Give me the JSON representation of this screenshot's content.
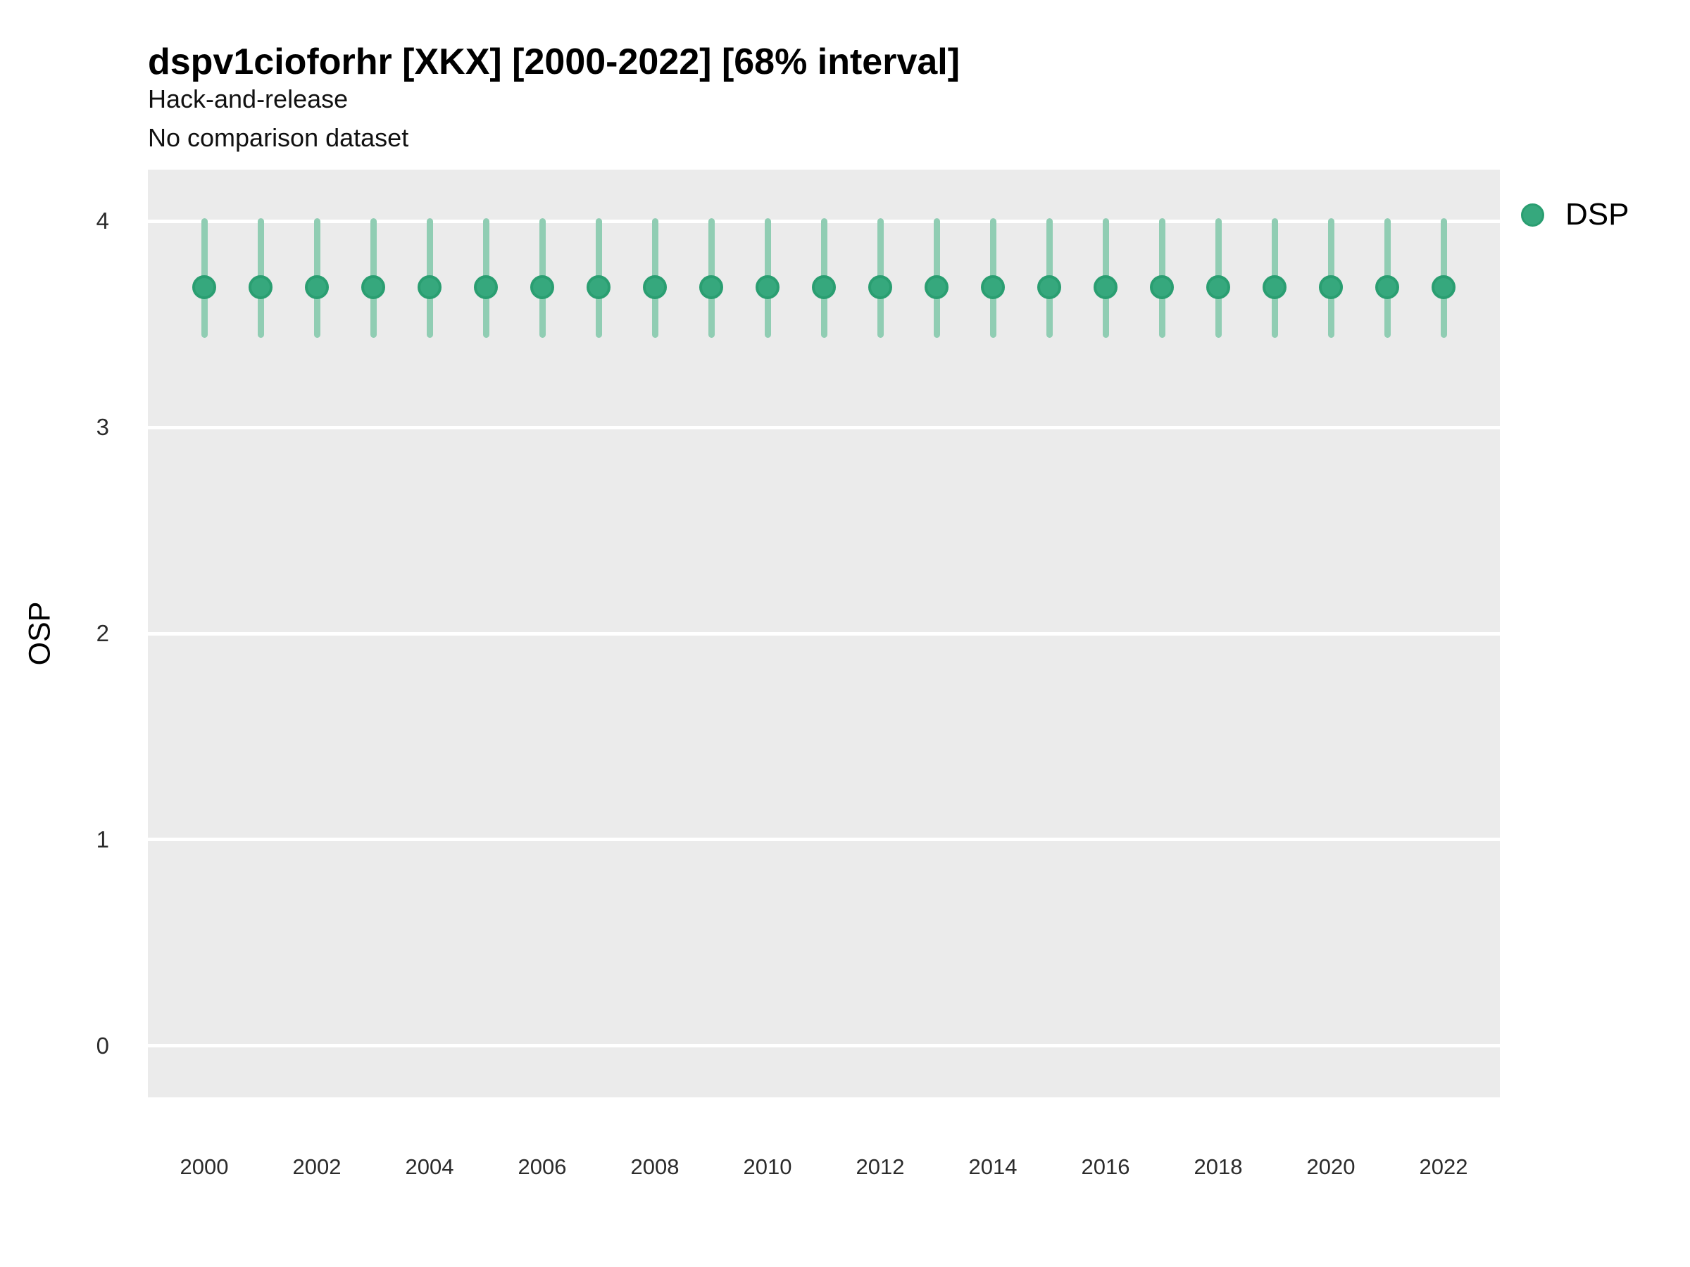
{
  "figure": {
    "title": "dspv1cioforhr [XKX] [2000-2022] [68% interval]",
    "subtitle_line1": "Hack-and-release",
    "subtitle_line2": "No comparison dataset"
  },
  "chart_data": {
    "type": "scatter",
    "mark": "pointrange",
    "title": "dspv1cioforhr [XKX] [2000-2022] [68% interval]",
    "subtitle": [
      "Hack-and-release",
      "No comparison dataset"
    ],
    "interval_label": "68% interval",
    "xlabel": "",
    "ylabel": "OSP",
    "xlim": [
      1999.0,
      2023.0
    ],
    "ylim": [
      -0.25,
      4.25
    ],
    "x_ticks": [
      2000,
      2002,
      2004,
      2006,
      2008,
      2010,
      2012,
      2014,
      2016,
      2018,
      2020,
      2022
    ],
    "y_ticks": [
      0,
      1,
      2,
      3,
      4
    ],
    "grid": {
      "horizontal_major": true,
      "vertical": false,
      "minor": false
    },
    "legend": {
      "position": "right",
      "entries": [
        {
          "label": "DSP",
          "color": "#36a87d"
        }
      ]
    },
    "series": [
      {
        "name": "DSP",
        "x": [
          2000,
          2001,
          2002,
          2003,
          2004,
          2005,
          2006,
          2007,
          2008,
          2009,
          2010,
          2011,
          2012,
          2013,
          2014,
          2015,
          2016,
          2017,
          2018,
          2019,
          2020,
          2021,
          2022
        ],
        "y": [
          3.68,
          3.68,
          3.68,
          3.68,
          3.68,
          3.68,
          3.68,
          3.68,
          3.68,
          3.68,
          3.68,
          3.68,
          3.68,
          3.68,
          3.68,
          3.68,
          3.68,
          3.68,
          3.68,
          3.68,
          3.68,
          3.68,
          3.68
        ],
        "y_low": [
          3.45,
          3.45,
          3.45,
          3.45,
          3.45,
          3.45,
          3.45,
          3.45,
          3.45,
          3.45,
          3.45,
          3.45,
          3.45,
          3.45,
          3.45,
          3.45,
          3.45,
          3.45,
          3.45,
          3.45,
          3.45,
          3.45,
          3.45
        ],
        "y_high": [
          4.0,
          4.0,
          4.0,
          4.0,
          4.0,
          4.0,
          4.0,
          4.0,
          4.0,
          4.0,
          4.0,
          4.0,
          4.0,
          4.0,
          4.0,
          4.0,
          4.0,
          4.0,
          4.0,
          4.0,
          4.0,
          4.0,
          4.0
        ]
      }
    ],
    "colors": {
      "point_fill": "#36a87d",
      "point_stroke": "#2a9e71",
      "interval_line": "#90cdb3",
      "panel_background": "#ebebeb",
      "gridline": "#ffffff"
    }
  }
}
